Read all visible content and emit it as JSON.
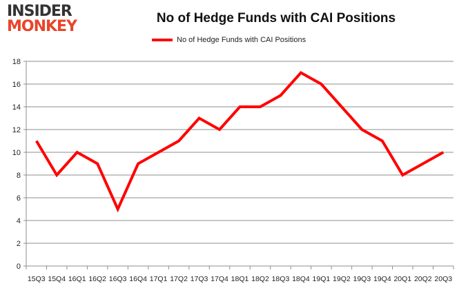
{
  "logo": {
    "line1": "INSIDER",
    "line2": "MONKEY"
  },
  "chart_data": {
    "type": "line",
    "title": "No of Hedge Funds with CAI Positions",
    "categories": [
      "15Q3",
      "15Q4",
      "16Q1",
      "16Q2",
      "16Q3",
      "16Q4",
      "17Q1",
      "17Q2",
      "17Q3",
      "17Q4",
      "18Q1",
      "18Q2",
      "18Q3",
      "18Q4",
      "19Q1",
      "19Q2",
      "19Q3",
      "19Q4",
      "20Q1",
      "20Q2",
      "20Q3"
    ],
    "series": [
      {
        "name": "No of Hedge Funds with CAI Positions",
        "color": "#ff0000",
        "values": [
          11,
          8,
          10,
          9,
          5,
          9,
          10,
          11,
          13,
          12,
          14,
          14,
          15,
          17,
          16,
          14,
          12,
          11,
          8,
          9,
          10
        ]
      }
    ],
    "ylim": [
      0,
      18
    ],
    "yticks": [
      0,
      2,
      4,
      6,
      8,
      10,
      12,
      14,
      16,
      18
    ],
    "grid": true,
    "legend": "top-center"
  }
}
